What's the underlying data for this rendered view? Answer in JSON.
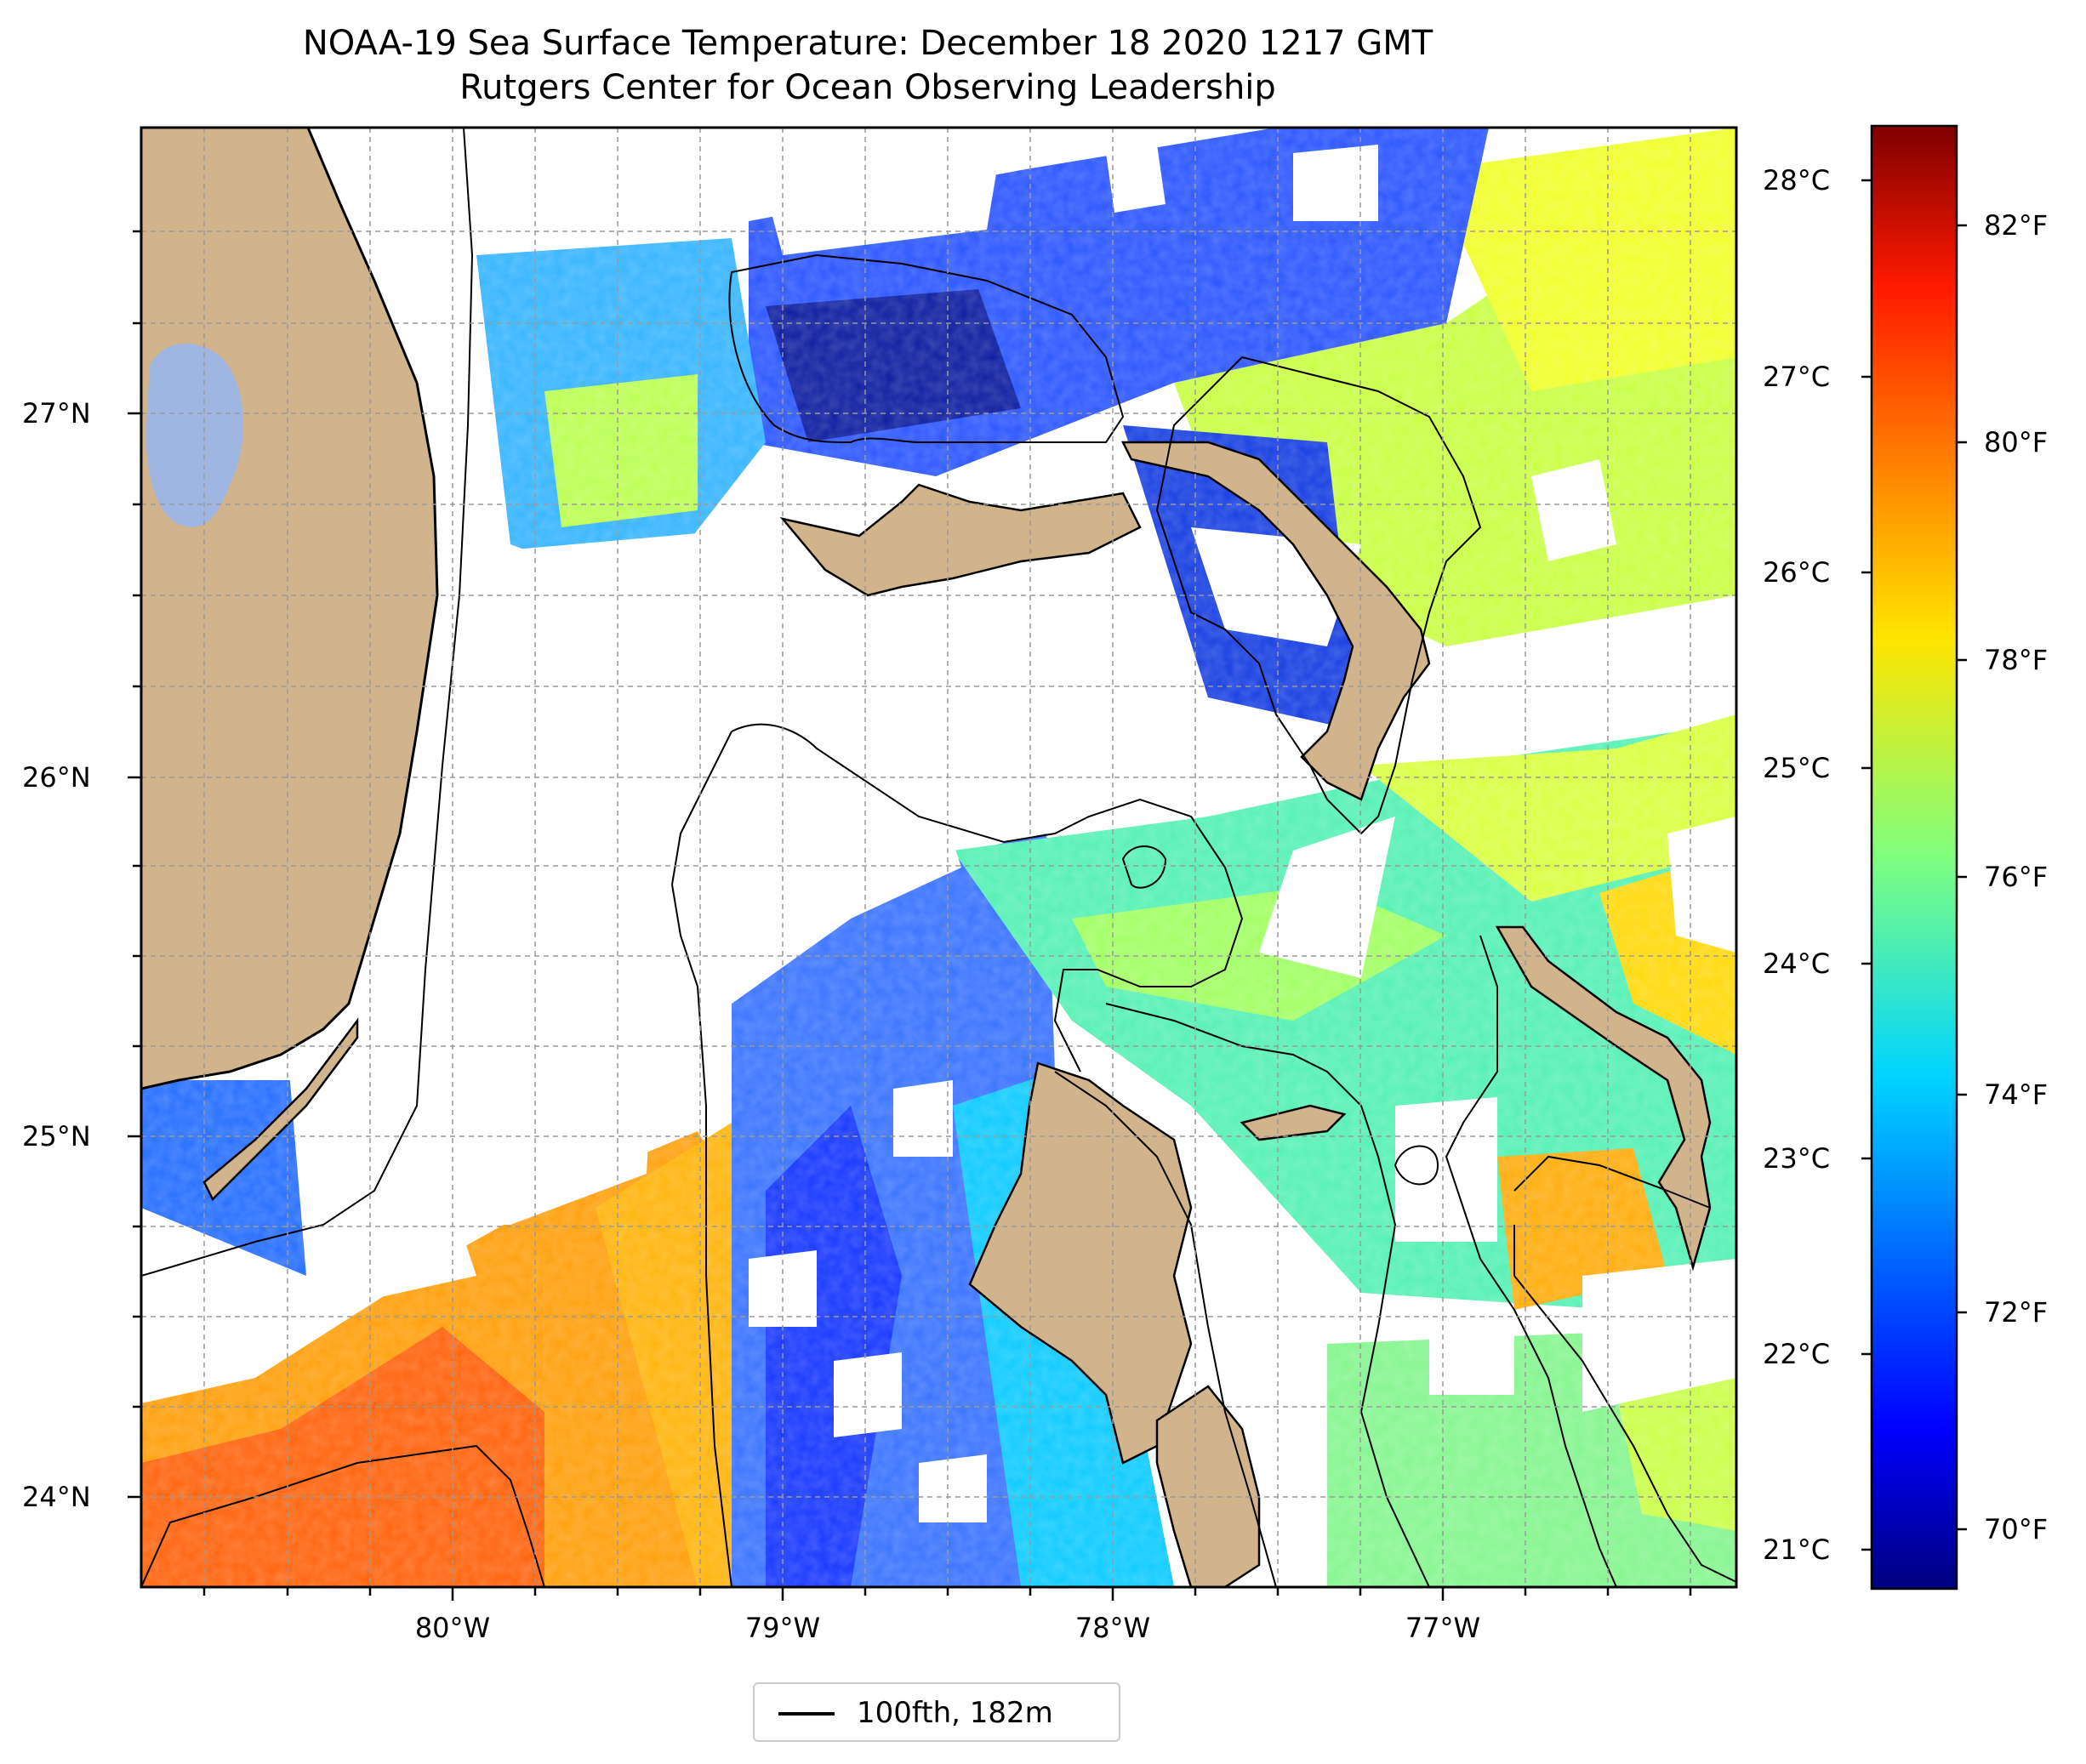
{
  "title": {
    "line1": "NOAA-19 Sea Surface Temperature: December 18 2020 1217 GMT",
    "line2": "Rutgers Center for Ocean Observing Leadership"
  },
  "map": {
    "lat_ticks": [
      "27°N",
      "26°N",
      "25°N",
      "24°N"
    ],
    "lon_ticks": [
      "80°W",
      "79°W",
      "78°W",
      "77°W"
    ],
    "gridlines": true,
    "land_color": "#d2b48c",
    "lake_color": "#9fb6e2",
    "no_data_color": "#ffffff",
    "contour": "100fth, 182m"
  },
  "colorbar": {
    "celsius_ticks": [
      "28°C",
      "27°C",
      "26°C",
      "25°C",
      "24°C",
      "23°C",
      "22°C",
      "21°C"
    ],
    "fahrenheit_ticks": [
      "82°F",
      "80°F",
      "78°F",
      "76°F",
      "74°F",
      "72°F",
      "70°F"
    ],
    "colormap": "jet",
    "colors": [
      "#00007f",
      "#0000ff",
      "#007fff",
      "#00e5ff",
      "#7fff7f",
      "#ffe500",
      "#ff7f00",
      "#ff0000",
      "#7f0000"
    ]
  },
  "legend": {
    "entry": "100fth, 182m"
  }
}
